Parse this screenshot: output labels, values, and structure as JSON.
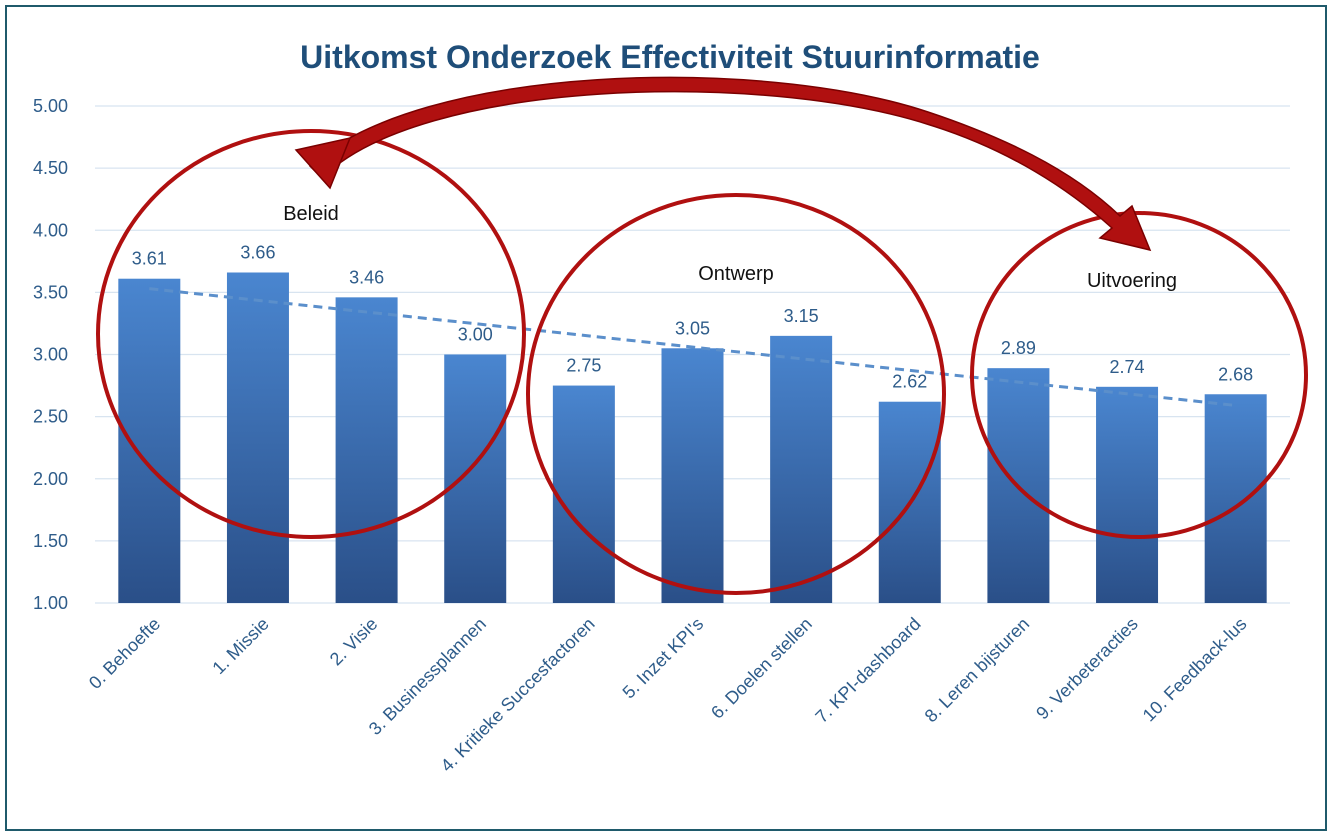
{
  "chart_data": {
    "type": "bar",
    "title": "Uitkomst Onderzoek Effectiviteit Stuurinformatie",
    "xlabel": "",
    "ylabel": "",
    "ylim": [
      1.0,
      5.0
    ],
    "yticks": [
      "1.00",
      "1.50",
      "2.00",
      "2.50",
      "3.00",
      "3.50",
      "4.00",
      "4.50",
      "5.00"
    ],
    "grid": true,
    "categories": [
      "0. Behoefte",
      "1. Missie",
      "2. Visie",
      "3. Businessplannen",
      "4. Kritieke Succesfactoren",
      "5. Inzet KPI's",
      "6. Doelen stellen",
      "7. KPI-dashboard",
      "8. Leren bijsturen",
      "9. Verbeteracties",
      "10. Feedback-lus"
    ],
    "values": [
      3.61,
      3.66,
      3.46,
      3.0,
      2.75,
      3.05,
      3.15,
      2.62,
      2.89,
      2.74,
      2.68
    ],
    "value_labels": [
      "3.61",
      "3.66",
      "3.46",
      "3.00",
      "2.75",
      "3.05",
      "3.15",
      "2.62",
      "2.89",
      "2.74",
      "2.68"
    ],
    "trendline": {
      "type": "linear",
      "style": "dashed",
      "y_start": 3.53,
      "y_end": 2.59
    },
    "annotations": [
      {
        "text": "Beleid",
        "group": [
          0,
          3
        ]
      },
      {
        "text": "Ontwerp",
        "group": [
          4,
          7
        ]
      },
      {
        "text": "Uitvoering",
        "group": [
          8,
          10
        ]
      }
    ],
    "colors": {
      "bar_top": "#4a86d0",
      "bar_bottom": "#2a4f88",
      "trend": "#5b8fcb",
      "circles": "#b01010",
      "title": "#1f4e79",
      "axis_text": "#2e5c8a",
      "grid": "#d8e4f0",
      "frame": "#1f5a6b"
    }
  }
}
